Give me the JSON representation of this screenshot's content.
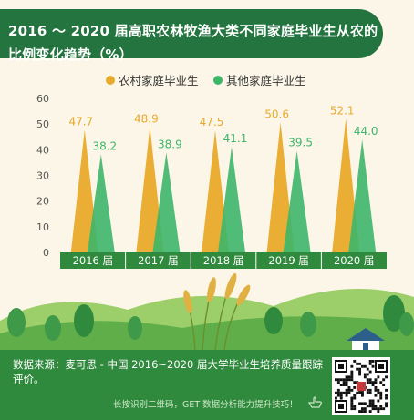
{
  "colors": {
    "rural": "#e9aa2b",
    "other": "#3db66a",
    "title_bg": "#23743f",
    "axis_band": "#2f8a3d",
    "footer_bg": "#2f8a3d"
  },
  "chart_data": {
    "type": "bar",
    "title": "2016 ～ 2020 届高职农林牧渔大类不同家庭毕业生从农的比例变化趋势（%）",
    "title_lines": [
      "2016 ～ 2020 届高职农林牧渔大类不同家庭毕业生从农的",
      "比例变化趋势（%）"
    ],
    "categories": [
      "2016 届",
      "2017 届",
      "2018 届",
      "2019 届",
      "2020 届"
    ],
    "series": [
      {
        "name": "农村家庭毕业生",
        "values": [
          47.7,
          48.9,
          47.5,
          50.6,
          52.1
        ]
      },
      {
        "name": "其他家庭毕业生",
        "values": [
          38.2,
          38.9,
          41.1,
          39.5,
          44.0
        ]
      }
    ],
    "value_labels": [
      [
        "47.7",
        "48.9",
        "47.5",
        "50.6",
        "52.1"
      ],
      [
        "38.2",
        "38.9",
        "41.1",
        "39.5",
        "44.0"
      ]
    ],
    "y_ticks": [
      "0",
      "10",
      "20",
      "30",
      "40",
      "50",
      "60"
    ],
    "ylim": [
      0,
      60
    ],
    "legend_position": "top",
    "mark_shape": "triangle"
  },
  "footer": {
    "source": "数据来源：麦可思 - 中国 2016~2020 届大学毕业生培养质量跟踪评价。",
    "cta": "长按识别二维码，GET 数据分析能力提升技巧！",
    "pointer_icon": "hand-pointer-icon",
    "qr_icon": "qr-code-icon"
  }
}
